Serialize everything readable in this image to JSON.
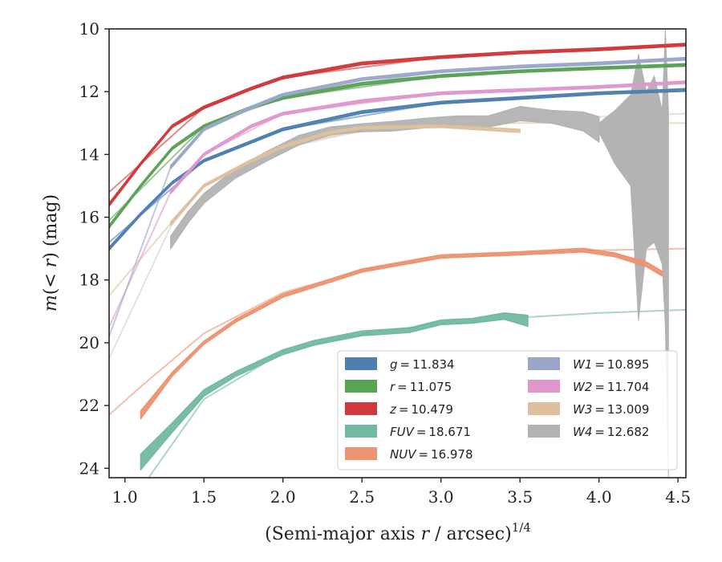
{
  "chart_data": {
    "type": "line",
    "xlabel_main": "(Semi-major axis ",
    "xlabel_r": "r",
    "xlabel_rest": " / arcsec)",
    "xlabel_exp": "1/4",
    "ylabel_main": "m",
    "ylabel_paren_open": "(< ",
    "ylabel_r": "r",
    "ylabel_rest": ") (mag)",
    "xlim": [
      0.9,
      4.55
    ],
    "ylim": [
      24.3,
      10.0
    ],
    "y_inverted": true,
    "xticks": [
      "1.0",
      "1.5",
      "2.0",
      "2.5",
      "3.0",
      "3.5",
      "4.0",
      "4.5"
    ],
    "yticks": [
      "10",
      "12",
      "14",
      "16",
      "18",
      "20",
      "22",
      "24"
    ],
    "legend": {
      "placement": "lower-right",
      "columns": 2,
      "entries": [
        {
          "band": "g",
          "value": "11.834",
          "color": "#4e7fb0"
        },
        {
          "band": "r",
          "value": "11.075",
          "color": "#5aa255"
        },
        {
          "band": "z",
          "value": "10.479",
          "color": "#d0393b"
        },
        {
          "band": "FUV",
          "value": "18.671",
          "color": "#72b9a4"
        },
        {
          "band": "NUV",
          "value": "16.978",
          "color": "#ec9472"
        },
        {
          "band": "W1",
          "value": "10.895",
          "color": "#9ba7ca"
        },
        {
          "band": "W2",
          "value": "11.704",
          "color": "#df98cc"
        },
        {
          "band": "W3",
          "value": "13.009",
          "color": "#deC19c"
        },
        {
          "band": "W4",
          "value": "12.682",
          "color": "#b3b3b3"
        }
      ]
    },
    "series": [
      {
        "name": "W4",
        "color": "#b3b3b3",
        "model_color": "#cfcfcf",
        "data": [
          [
            1.29,
            16.8
          ],
          [
            1.4,
            16.0
          ],
          [
            1.5,
            15.4
          ],
          [
            1.7,
            14.6
          ],
          [
            1.9,
            14.05
          ],
          [
            2.1,
            13.55
          ],
          [
            2.3,
            13.25
          ],
          [
            2.5,
            13.15
          ],
          [
            2.7,
            13.1
          ],
          [
            2.9,
            13.0
          ],
          [
            3.1,
            12.95
          ],
          [
            3.3,
            12.95
          ],
          [
            3.5,
            12.7
          ],
          [
            3.7,
            12.8
          ],
          [
            3.9,
            12.95
          ],
          [
            4.0,
            13.2
          ]
        ],
        "width_mag": [
          0.4,
          0.35,
          0.3,
          0.3,
          0.3,
          0.3,
          0.25,
          0.25,
          0.3,
          0.3,
          0.35,
          0.35,
          0.45,
          0.4,
          0.6,
          0.8
        ],
        "model": [
          [
            0.9,
            20.5
          ],
          [
            1.29,
            16.3
          ],
          [
            1.5,
            15.0
          ],
          [
            1.8,
            14.2
          ],
          [
            2.0,
            13.8
          ],
          [
            2.5,
            13.25
          ],
          [
            3.0,
            13.05
          ],
          [
            3.5,
            12.9
          ],
          [
            4.0,
            12.8
          ],
          [
            4.55,
            12.7
          ]
        ],
        "noisy_tail": {
          "top": [
            [
              4.0,
              13.0
            ],
            [
              4.1,
              12.6
            ],
            [
              4.2,
              12.1
            ],
            [
              4.25,
              10.8
            ],
            [
              4.3,
              12.0
            ],
            [
              4.35,
              11.5
            ],
            [
              4.4,
              12.6
            ],
            [
              4.42,
              10.0
            ],
            [
              4.44,
              12.6
            ]
          ],
          "bottom": [
            [
              4.44,
              24.3
            ],
            [
              4.42,
              19.5
            ],
            [
              4.4,
              17.5
            ],
            [
              4.35,
              16.8
            ],
            [
              4.3,
              17.0
            ],
            [
              4.25,
              19.3
            ],
            [
              4.2,
              15.0
            ],
            [
              4.1,
              14.3
            ],
            [
              4.0,
              13.3
            ]
          ]
        }
      },
      {
        "name": "W3",
        "color": "#deC19c",
        "data": [
          [
            1.29,
            16.2
          ],
          [
            1.5,
            15.0
          ],
          [
            1.8,
            14.2
          ],
          [
            2.0,
            13.75
          ],
          [
            2.3,
            13.3
          ],
          [
            2.5,
            13.15
          ],
          [
            3.0,
            13.1
          ],
          [
            3.5,
            13.25
          ]
        ],
        "width_mag": [
          0.1,
          0.08,
          0.08,
          0.08,
          0.08,
          0.08,
          0.08,
          0.1
        ],
        "model": [
          [
            0.9,
            18.5
          ],
          [
            1.29,
            16.2
          ],
          [
            1.5,
            15.0
          ],
          [
            2.0,
            13.75
          ],
          [
            2.5,
            13.2
          ],
          [
            3.0,
            13.05
          ],
          [
            3.5,
            13.0
          ],
          [
            4.0,
            13.0
          ],
          [
            4.55,
            13.0
          ]
        ]
      },
      {
        "name": "NUV",
        "color": "#ec9472",
        "data": [
          [
            1.1,
            22.3
          ],
          [
            1.3,
            21.0
          ],
          [
            1.5,
            20.0
          ],
          [
            1.7,
            19.3
          ],
          [
            2.0,
            18.5
          ],
          [
            2.5,
            17.7
          ],
          [
            3.0,
            17.25
          ],
          [
            3.5,
            17.15
          ],
          [
            3.9,
            17.05
          ],
          [
            4.1,
            17.2
          ],
          [
            4.3,
            17.5
          ],
          [
            4.4,
            17.8
          ]
        ],
        "width_mag": [
          0.25,
          0.12,
          0.1,
          0.1,
          0.1,
          0.1,
          0.1,
          0.1,
          0.12,
          0.12,
          0.15,
          0.15
        ],
        "model": [
          [
            0.9,
            22.3
          ],
          [
            1.1,
            21.4
          ],
          [
            1.5,
            19.7
          ],
          [
            2.0,
            18.4
          ],
          [
            2.5,
            17.7
          ],
          [
            3.0,
            17.3
          ],
          [
            3.5,
            17.15
          ],
          [
            4.0,
            17.05
          ],
          [
            4.55,
            17.0
          ]
        ]
      },
      {
        "name": "FUV",
        "color": "#72b9a4",
        "data": [
          [
            1.1,
            23.8
          ],
          [
            1.3,
            22.7
          ],
          [
            1.5,
            21.6
          ],
          [
            1.7,
            21.0
          ],
          [
            2.0,
            20.3
          ],
          [
            2.2,
            20.0
          ],
          [
            2.5,
            19.7
          ],
          [
            2.8,
            19.6
          ],
          [
            3.0,
            19.35
          ],
          [
            3.2,
            19.3
          ],
          [
            3.4,
            19.15
          ],
          [
            3.55,
            19.3
          ]
        ],
        "width_mag": [
          0.5,
          0.3,
          0.2,
          0.15,
          0.15,
          0.15,
          0.15,
          0.15,
          0.15,
          0.15,
          0.2,
          0.35
        ],
        "model": [
          [
            1.15,
            24.3
          ],
          [
            1.5,
            21.8
          ],
          [
            2.0,
            20.3
          ],
          [
            2.5,
            19.7
          ],
          [
            3.0,
            19.4
          ],
          [
            3.5,
            19.2
          ],
          [
            4.0,
            19.05
          ],
          [
            4.55,
            18.95
          ]
        ]
      },
      {
        "name": "g",
        "color": "#4e7fb0",
        "data": [
          [
            0.9,
            17.0
          ],
          [
            1.1,
            15.9
          ],
          [
            1.3,
            14.9
          ],
          [
            1.5,
            14.2
          ],
          [
            1.8,
            13.6
          ],
          [
            2.0,
            13.2
          ],
          [
            2.5,
            12.65
          ],
          [
            3.0,
            12.35
          ],
          [
            3.5,
            12.2
          ],
          [
            4.0,
            12.05
          ],
          [
            4.55,
            11.95
          ]
        ],
        "width_mag": [
          0.1,
          0.08,
          0.08,
          0.08,
          0.08,
          0.08,
          0.08,
          0.08,
          0.08,
          0.08,
          0.08
        ],
        "model": [
          [
            0.9,
            16.8
          ],
          [
            1.5,
            14.2
          ],
          [
            2.0,
            13.2
          ],
          [
            3.0,
            12.35
          ],
          [
            4.0,
            12.05
          ],
          [
            4.55,
            11.9
          ]
        ]
      },
      {
        "name": "W2",
        "color": "#df98cc",
        "data": [
          [
            1.29,
            15.2
          ],
          [
            1.5,
            14.0
          ],
          [
            1.8,
            13.1
          ],
          [
            2.0,
            12.7
          ],
          [
            2.5,
            12.3
          ],
          [
            3.0,
            12.05
          ],
          [
            3.5,
            11.95
          ],
          [
            4.0,
            11.85
          ],
          [
            4.55,
            11.7
          ]
        ],
        "width_mag": [
          0.1,
          0.08,
          0.08,
          0.08,
          0.08,
          0.08,
          0.08,
          0.08,
          0.08
        ],
        "model": [
          [
            0.9,
            19.5
          ],
          [
            1.29,
            15.2
          ],
          [
            1.5,
            14.0
          ],
          [
            2.0,
            12.7
          ],
          [
            3.0,
            12.05
          ],
          [
            4.0,
            11.85
          ],
          [
            4.55,
            11.7
          ]
        ]
      },
      {
        "name": "r",
        "color": "#5aa255",
        "data": [
          [
            0.9,
            16.3
          ],
          [
            1.1,
            15.0
          ],
          [
            1.3,
            13.8
          ],
          [
            1.5,
            13.1
          ],
          [
            1.8,
            12.5
          ],
          [
            2.0,
            12.2
          ],
          [
            2.5,
            11.75
          ],
          [
            3.0,
            11.5
          ],
          [
            3.5,
            11.35
          ],
          [
            4.0,
            11.25
          ],
          [
            4.55,
            11.15
          ]
        ],
        "width_mag": [
          0.1,
          0.08,
          0.08,
          0.08,
          0.08,
          0.08,
          0.08,
          0.08,
          0.08,
          0.08,
          0.08
        ],
        "model": [
          [
            0.9,
            16.1
          ],
          [
            1.5,
            13.1
          ],
          [
            2.0,
            12.2
          ],
          [
            3.0,
            11.5
          ],
          [
            4.0,
            11.25
          ],
          [
            4.55,
            11.15
          ]
        ]
      },
      {
        "name": "W1",
        "color": "#9ba7ca",
        "data": [
          [
            1.29,
            14.4
          ],
          [
            1.5,
            13.2
          ],
          [
            1.8,
            12.5
          ],
          [
            2.0,
            12.1
          ],
          [
            2.5,
            11.6
          ],
          [
            3.0,
            11.35
          ],
          [
            3.5,
            11.2
          ],
          [
            4.0,
            11.1
          ],
          [
            4.55,
            10.95
          ]
        ],
        "width_mag": [
          0.1,
          0.08,
          0.08,
          0.08,
          0.08,
          0.08,
          0.08,
          0.08,
          0.08
        ],
        "model": [
          [
            0.9,
            19.8
          ],
          [
            1.29,
            14.4
          ],
          [
            1.5,
            13.2
          ],
          [
            2.0,
            12.1
          ],
          [
            3.0,
            11.35
          ],
          [
            4.0,
            11.1
          ],
          [
            4.55,
            10.95
          ]
        ]
      },
      {
        "name": "z",
        "color": "#d0393b",
        "data": [
          [
            0.9,
            15.6
          ],
          [
            1.1,
            14.3
          ],
          [
            1.3,
            13.1
          ],
          [
            1.5,
            12.5
          ],
          [
            1.8,
            11.9
          ],
          [
            2.0,
            11.55
          ],
          [
            2.5,
            11.1
          ],
          [
            3.0,
            10.9
          ],
          [
            3.5,
            10.75
          ],
          [
            4.0,
            10.65
          ],
          [
            4.55,
            10.5
          ]
        ],
        "width_mag": [
          0.1,
          0.08,
          0.08,
          0.08,
          0.08,
          0.08,
          0.08,
          0.08,
          0.08,
          0.08,
          0.08
        ],
        "model": [
          [
            0.9,
            15.2
          ],
          [
            1.5,
            12.5
          ],
          [
            2.0,
            11.55
          ],
          [
            3.0,
            10.9
          ],
          [
            4.0,
            10.65
          ],
          [
            4.55,
            10.5
          ]
        ]
      }
    ]
  }
}
